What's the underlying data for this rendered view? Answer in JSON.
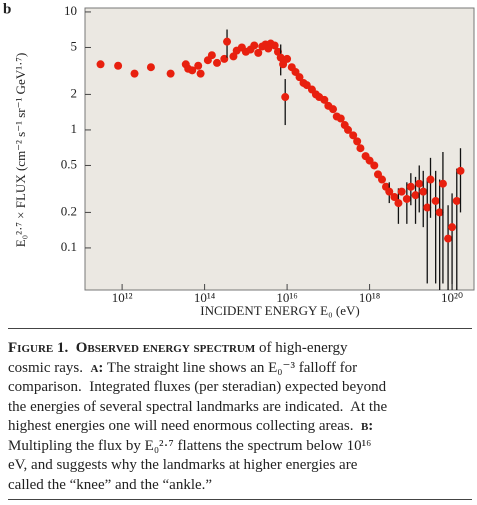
{
  "chart_data": {
    "type": "scatter",
    "panel_label": "b",
    "x_label": "INCIDENT ENERGY E₀ (eV)",
    "y_label": "E₀²·⁷ × FLUX (cm⁻² s⁻¹ sr⁻¹ GeV¹·⁷)",
    "xscale": "log",
    "yscale": "log",
    "color": "#e8200f",
    "xlim": [
      126000000000.0,
      3.4e+20
    ],
    "ylim": [
      0.044,
      10.8
    ],
    "xticks": [
      {
        "value": 1000000000000.0,
        "label": "10¹²"
      },
      {
        "value": 100000000000000.0,
        "label": "10¹⁴"
      },
      {
        "value": 1e+16,
        "label": "10¹⁶"
      },
      {
        "value": 1e+18,
        "label": "10¹⁸"
      },
      {
        "value": 1e+20,
        "label": "10²⁰"
      }
    ],
    "yticks": [
      10,
      5,
      2,
      1,
      0.5,
      0.2,
      0.1
    ],
    "x": [
      300000000000.0,
      800000000000.0,
      2000000000000.0,
      5000000000000.0,
      15000000000000.0,
      35000000000000.0,
      40000000000000.0,
      50000000000000.0,
      70000000000000.0,
      80000000000000.0,
      120000000000000.0,
      150000000000000.0,
      200000000000000.0,
      300000000000000.0,
      350000000000000.0,
      500000000000000.0,
      600000000000000.0,
      800000000000000.0,
      1000000000000000.0,
      1300000000000000.0,
      1600000000000000.0,
      2000000000000000.0,
      2500000000000000.0,
      3000000000000000.0,
      3500000000000000.0,
      4000000000000000.0,
      5000000000000000.0,
      6000000000000000.0,
      7000000000000000.0,
      8000000000000000.0,
      9000000000000000.0,
      1e+16,
      1.3e+16,
      1.6e+16,
      2e+16,
      2.5e+16,
      3e+16,
      4e+16,
      5e+16,
      6e+16,
      8e+16,
      1e+17,
      1.3e+17,
      1.6e+17,
      2e+17,
      2.5e+17,
      3e+17,
      4e+17,
      5e+17,
      6e+17,
      8e+17,
      1e+18,
      1.3e+18,
      1.6e+18,
      2e+18,
      2.5e+18,
      3e+18,
      4e+18,
      5e+18,
      6e+18,
      8e+18,
      1e+19,
      1.3e+19,
      1.6e+19,
      2e+19,
      2.5e+19,
      3e+19,
      4e+19,
      5e+19,
      6e+19,
      8e+19,
      1e+20,
      1.3e+20,
      1.6e+20
    ],
    "values": [
      3.6,
      3.5,
      3.0,
      3.4,
      3.0,
      3.6,
      3.3,
      3.2,
      3.5,
      3.0,
      3.9,
      4.3,
      3.7,
      4.0,
      5.6,
      4.2,
      4.7,
      5.0,
      4.6,
      4.8,
      5.2,
      4.5,
      5.1,
      5.3,
      4.9,
      5.4,
      5.2,
      4.6,
      4.1,
      3.6,
      1.9,
      4.0,
      3.4,
      3.1,
      2.8,
      2.5,
      2.4,
      2.2,
      2.0,
      1.9,
      1.8,
      1.6,
      1.5,
      1.3,
      1.25,
      1.1,
      1.0,
      0.9,
      0.8,
      0.7,
      0.6,
      0.55,
      0.5,
      0.42,
      0.38,
      0.33,
      0.3,
      0.27,
      0.24,
      0.3,
      0.26,
      0.33,
      0.28,
      0.35,
      0.3,
      0.22,
      0.38,
      0.25,
      0.2,
      0.35,
      0.12,
      0.15,
      0.25,
      0.45
    ],
    "errors": [
      null,
      null,
      null,
      null,
      null,
      null,
      null,
      null,
      null,
      null,
      null,
      null,
      null,
      null,
      1.5,
      null,
      null,
      null,
      null,
      null,
      null,
      null,
      null,
      null,
      null,
      null,
      null,
      null,
      1.2,
      null,
      0.8,
      null,
      null,
      null,
      null,
      null,
      null,
      null,
      null,
      null,
      null,
      null,
      null,
      null,
      null,
      null,
      null,
      null,
      null,
      null,
      null,
      null,
      null,
      null,
      null,
      null,
      0.06,
      null,
      0.08,
      null,
      0.1,
      0.1,
      0.12,
      0.15,
      0.15,
      0.17,
      0.2,
      0.2,
      0.18,
      0.3,
      0.11,
      0.14,
      0.22,
      0.25
    ]
  },
  "caption": {
    "lines": [
      [
        {
          "text": "Figure 1.  Observed energy spectrum",
          "bold": true
        },
        {
          "text": " of high-energy"
        }
      ],
      [
        {
          "text": "cosmic rays.  "
        },
        {
          "text": "a:",
          "bold": true
        },
        {
          "text": " The straight line shows an E₀⁻³ falloff for"
        }
      ],
      [
        {
          "text": "comparison.  Integrated fluxes (per steradian) expected beyond"
        }
      ],
      [
        {
          "text": "the energies of several spectral landmarks are indicated.  At the"
        }
      ],
      [
        {
          "text": "highest energies one will need enormous collecting areas.  "
        },
        {
          "text": "b:",
          "bold": true
        }
      ],
      [
        {
          "text": "Multipling the flux by E₀²·⁷ flattens the spectrum below 10¹⁶"
        }
      ],
      [
        {
          "text": "eV, and suggests why the landmarks at higher energies are"
        }
      ],
      [
        {
          "text": "called the “knee” and the “ankle.”"
        }
      ]
    ]
  }
}
